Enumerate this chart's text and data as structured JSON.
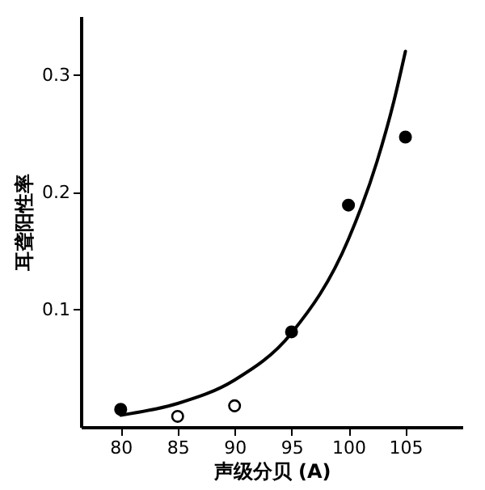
{
  "chart_data": {
    "type": "scatter",
    "xlabel": "声级分贝 (A)",
    "ylabel": "耳聋阳性率",
    "xlim": [
      76.5,
      110
    ],
    "xticks": [
      80,
      85,
      90,
      95,
      100,
      105
    ],
    "ylim": [
      0,
      0.35
    ],
    "yticks": [
      0.1,
      0.2,
      0.3
    ],
    "grid": false,
    "marker": "circle",
    "series": [
      {
        "color": "#000000",
        "x": [
          80,
          95,
          100,
          105
        ],
        "values": [
          0.015,
          0.081,
          0.189,
          0.247
        ]
      },
      {
        "color": "#ffffff",
        "x": [
          85,
          90
        ],
        "values": [
          0.009,
          0.018
        ]
      },
      {
        "type": "line",
        "color": "#000000",
        "marker": "none",
        "x": [
          80,
          85,
          90,
          95,
          100,
          102.5,
          104,
          105
        ],
        "values": [
          0.01,
          0.02,
          0.04,
          0.08,
          0.16,
          0.226,
          0.278,
          0.32
        ]
      }
    ]
  }
}
